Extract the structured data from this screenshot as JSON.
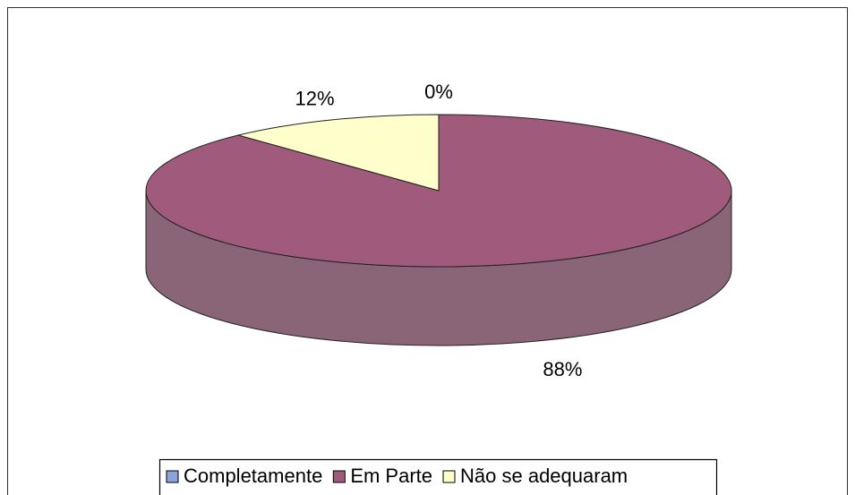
{
  "chart_data": {
    "type": "pie3d",
    "categories": [
      "Completamente",
      "Em Parte",
      "Não se adequaram"
    ],
    "values": [
      0,
      88,
      12
    ],
    "value_labels": [
      "0%",
      "88%",
      "12%"
    ],
    "colors": [
      "#8ea2dc",
      "#a05a7c",
      "#ffffcc"
    ],
    "legend": "bottom"
  }
}
